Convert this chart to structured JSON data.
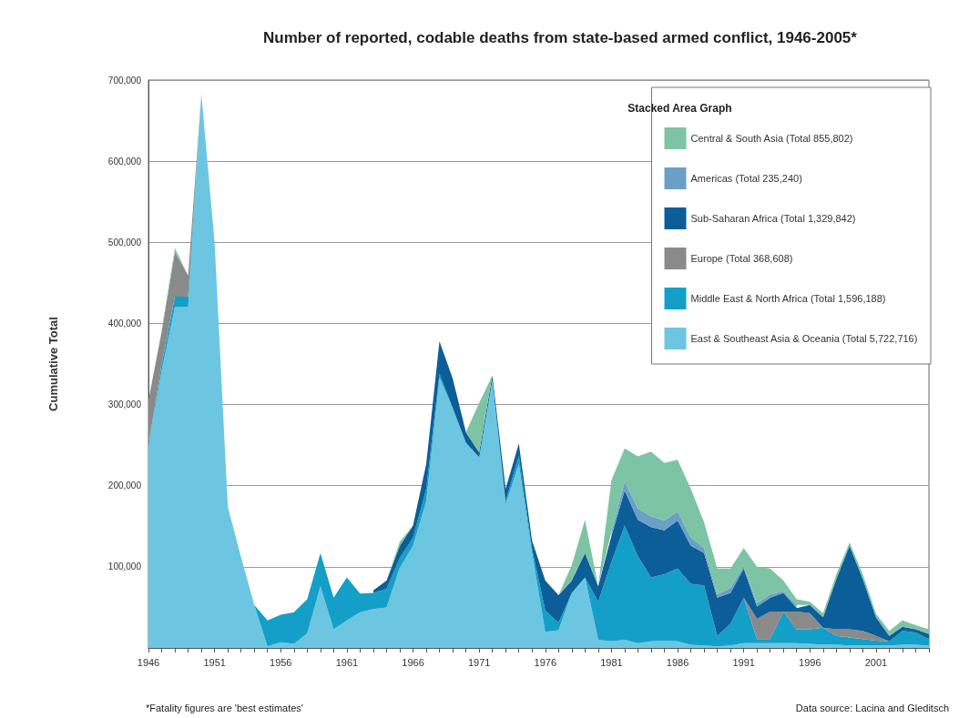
{
  "chart_data": {
    "type": "area",
    "title": "Number of reported, codable deaths from state-based armed conflict, 1946-2005*",
    "ylabel": "Cumulative Total",
    "legend_title": "Stacked Area Graph",
    "stacked": true,
    "grid": "y",
    "legend": "top right",
    "marker": "none",
    "annotations": [
      "*Fatality figures are 'best estimates'",
      "Data source: Lacina and Gleditsch"
    ],
    "x": [
      1946,
      1947,
      1948,
      1949,
      1950,
      1951,
      1952,
      1953,
      1954,
      1955,
      1956,
      1957,
      1958,
      1959,
      1960,
      1961,
      1962,
      1963,
      1964,
      1965,
      1966,
      1967,
      1968,
      1969,
      1970,
      1971,
      1972,
      1973,
      1974,
      1975,
      1976,
      1977,
      1978,
      1979,
      1980,
      1981,
      1982,
      1983,
      1984,
      1985,
      1986,
      1987,
      1988,
      1989,
      1990,
      1991,
      1992,
      1993,
      1994,
      1995,
      1996,
      1997,
      1998,
      1999,
      2000,
      2001,
      2002,
      2003,
      2004,
      2005
    ],
    "xlim": [
      1946,
      2005
    ],
    "xticks": [
      1946,
      {
        "value": 1947,
        "label": null
      },
      {
        "value": 1948,
        "label": null
      },
      {
        "value": 1949,
        "label": null
      },
      {
        "value": 1950,
        "label": null
      },
      1951,
      {
        "value": 1952,
        "label": null
      },
      {
        "value": 1953,
        "label": null
      },
      {
        "value": 1954,
        "label": null
      },
      {
        "value": 1955,
        "label": null
      },
      1956,
      {
        "value": 1957,
        "label": null
      },
      {
        "value": 1958,
        "label": null
      },
      {
        "value": 1959,
        "label": null
      },
      {
        "value": 1960,
        "label": null
      },
      1961,
      {
        "value": 1962,
        "label": null
      },
      {
        "value": 1963,
        "label": null
      },
      {
        "value": 1964,
        "label": null
      },
      {
        "value": 1965,
        "label": null
      },
      1966,
      {
        "value": 1967,
        "label": null
      },
      {
        "value": 1968,
        "label": null
      },
      {
        "value": 1969,
        "label": null
      },
      {
        "value": 1970,
        "label": null
      },
      1971,
      {
        "value": 1972,
        "label": null
      },
      {
        "value": 1973,
        "label": null
      },
      {
        "value": 1974,
        "label": null
      },
      {
        "value": 1975,
        "label": null
      },
      1976,
      {
        "value": 1977,
        "label": null
      },
      {
        "value": 1978,
        "label": null
      },
      {
        "value": 1979,
        "label": null
      },
      {
        "value": 1980,
        "label": null
      },
      1981,
      {
        "value": 1982,
        "label": null
      },
      {
        "value": 1983,
        "label": null
      },
      {
        "value": 1984,
        "label": null
      },
      {
        "value": 1985,
        "label": null
      },
      1986,
      {
        "value": 1987,
        "label": null
      },
      {
        "value": 1988,
        "label": null
      },
      {
        "value": 1989,
        "label": null
      },
      {
        "value": 1990,
        "label": null
      },
      1991,
      {
        "value": 1992,
        "label": null
      },
      {
        "value": 1993,
        "label": null
      },
      {
        "value": 1994,
        "label": null
      },
      {
        "value": 1995,
        "label": null
      },
      1996,
      {
        "value": 1997,
        "label": null
      },
      {
        "value": 1998,
        "label": null
      },
      {
        "value": 1999,
        "label": null
      },
      {
        "value": 2000,
        "label": null
      },
      2001,
      {
        "value": 2002,
        "label": null
      },
      {
        "value": 2003,
        "label": null
      },
      {
        "value": 2004,
        "label": null
      },
      {
        "value": 2005,
        "label": null
      }
    ],
    "ylim": [
      0,
      700000
    ],
    "yticks": [
      {
        "value": 0,
        "label": null
      },
      {
        "value": 100000,
        "label": "100,000"
      },
      {
        "value": 200000,
        "label": "200,000"
      },
      {
        "value": 300000,
        "label": "300,000"
      },
      {
        "value": 400000,
        "label": "400,000"
      },
      {
        "value": 500000,
        "label": "500,000"
      },
      {
        "value": 600000,
        "label": "600,000"
      },
      {
        "value": 700000,
        "label": "700,000"
      }
    ],
    "series": [
      {
        "name": "East & Southeast Asia & Oceania (Total 5,722,716)",
        "color": "#6cc6e2",
        "values": [
          250000,
          342000,
          420000,
          420000,
          683000,
          500000,
          174000,
          112000,
          53000,
          2000,
          7000,
          5000,
          18000,
          76000,
          23000,
          34000,
          44000,
          48000,
          50000,
          99000,
          126000,
          181000,
          333000,
          296000,
          253000,
          235000,
          330000,
          177000,
          227000,
          117000,
          20000,
          22000,
          68000,
          87000,
          10000,
          8000,
          10000,
          6000,
          8000,
          9000,
          8000,
          4000,
          3000,
          2000,
          3000,
          6000,
          6000,
          6000,
          6000,
          6000,
          5000,
          4000,
          4000,
          3000,
          3000,
          3000,
          3000,
          4000,
          4000,
          3000
        ]
      },
      {
        "name": "Middle East & North Africa (Total 1,596,188)",
        "color": "#149fc8",
        "values": [
          0,
          8000,
          13000,
          13000,
          0,
          0,
          0,
          0,
          0,
          32000,
          34000,
          39000,
          42000,
          41000,
          39000,
          53000,
          23000,
          20000,
          23000,
          12000,
          10000,
          15000,
          5000,
          0,
          0,
          0,
          0,
          4000,
          10000,
          5000,
          26000,
          9000,
          0,
          0,
          47000,
          98000,
          141000,
          107000,
          79000,
          82000,
          90000,
          75000,
          74000,
          13000,
          27000,
          56000,
          5000,
          5000,
          39000,
          17000,
          18000,
          21000,
          11000,
          10000,
          8000,
          6000,
          5000,
          17000,
          15000,
          8000
        ]
      },
      {
        "name": "Europe (Total 368,608)",
        "color": "#8a8a8a",
        "values": [
          55000,
          40000,
          55000,
          26000,
          0,
          0,
          0,
          0,
          0,
          0,
          0,
          0,
          0,
          0,
          0,
          0,
          0,
          0,
          0,
          0,
          0,
          0,
          0,
          0,
          0,
          0,
          0,
          0,
          0,
          0,
          0,
          0,
          0,
          0,
          0,
          0,
          0,
          0,
          0,
          0,
          0,
          0,
          0,
          0,
          0,
          0,
          25000,
          34000,
          0,
          22000,
          20000,
          0,
          8000,
          10000,
          10000,
          6000,
          0,
          0,
          0,
          0
        ]
      },
      {
        "name": "Sub-Saharan Africa (Total 1,329,842)",
        "color": "#0b5e98",
        "values": [
          null,
          null,
          null,
          null,
          null,
          null,
          null,
          null,
          null,
          null,
          null,
          null,
          null,
          null,
          null,
          null,
          null,
          3000,
          10000,
          15000,
          15000,
          31000,
          40000,
          36000,
          13000,
          6000,
          6000,
          15000,
          15000,
          10000,
          37000,
          34000,
          15000,
          30000,
          19000,
          32000,
          43000,
          45000,
          62000,
          54000,
          59000,
          47000,
          40000,
          47000,
          38000,
          36000,
          15000,
          17000,
          23000,
          4000,
          10000,
          13000,
          62000,
          103000,
          64000,
          23000,
          7000,
          5000,
          4000,
          6000
        ]
      },
      {
        "name": "Americas (Total 235,240)",
        "color": "#6a9fc8",
        "values": [
          null,
          null,
          null,
          null,
          null,
          null,
          null,
          null,
          null,
          null,
          null,
          null,
          null,
          null,
          null,
          null,
          null,
          null,
          null,
          null,
          null,
          null,
          null,
          null,
          null,
          null,
          null,
          null,
          null,
          null,
          null,
          null,
          null,
          null,
          null,
          5000,
          11000,
          14000,
          13000,
          12000,
          11000,
          10000,
          6000,
          4000,
          6000,
          3000,
          4000,
          4000,
          2000,
          4000,
          null,
          null,
          null,
          null,
          null,
          null,
          null,
          null,
          null,
          null
        ]
      },
      {
        "name": "Central & South Asia (Total 855,802)",
        "color": "#7cc4a4",
        "values": [
          null,
          2000,
          5000,
          0,
          0,
          0,
          0,
          0,
          0,
          0,
          0,
          0,
          0,
          0,
          0,
          0,
          0,
          0,
          0,
          5000,
          0,
          0,
          0,
          0,
          0,
          61000,
          0,
          0,
          0,
          0,
          0,
          0,
          19000,
          41000,
          0,
          64000,
          41000,
          64000,
          80000,
          71000,
          64000,
          60000,
          32000,
          32000,
          24000,
          22000,
          45000,
          32000,
          13000,
          7000,
          4000,
          5000,
          6000,
          4000,
          6000,
          4000,
          6000,
          8000,
          5000,
          6000
        ]
      }
    ]
  }
}
